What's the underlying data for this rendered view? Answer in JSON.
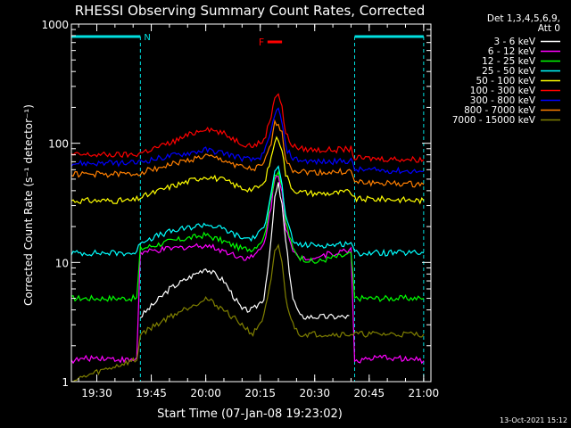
{
  "chart_data": {
    "type": "line",
    "title": "RHESSI Observing Summary Count Rates, Corrected",
    "xlabel": "Start Time (07-Jan-08 19:23:02)",
    "ylabel": "Corrected Count Rate (s⁻¹ detector⁻¹)",
    "y_scale": "log",
    "ylim": [
      1,
      1000
    ],
    "xlim": [
      "19:23",
      "21:02"
    ],
    "x_ticks": [
      "19:30",
      "19:45",
      "20:00",
      "20:15",
      "20:30",
      "20:45",
      "21:00"
    ],
    "y_ticks": [
      "1",
      "10",
      "100",
      "1000"
    ],
    "grid": false,
    "legend_position": "right",
    "legend_header": [
      "Det 1,3,4,5,6,9,",
      "Att 0"
    ],
    "flags": [
      {
        "label": "N",
        "start": "19:23",
        "end": "19:42",
        "color": "#00e0e0"
      },
      {
        "label": "N",
        "start": "20:41",
        "end": "21:00",
        "color": "#00e0e0"
      },
      {
        "label": "F",
        "start": "20:17",
        "end": "20:21",
        "color": "#ff0000"
      }
    ],
    "x": [
      "19:23",
      "19:30",
      "19:40",
      "19:41",
      "19:42",
      "19:50",
      "20:00",
      "20:05",
      "20:10",
      "20:13",
      "20:16",
      "20:18",
      "20:19",
      "20:20",
      "20:21",
      "20:22",
      "20:24",
      "20:26",
      "20:30",
      "20:35",
      "20:39",
      "20:40",
      "20:41",
      "20:50",
      "21:00"
    ],
    "series": [
      {
        "name": "3 - 6 keV",
        "color": "#ffffff",
        "values": [
          null,
          null,
          null,
          null,
          3.5,
          6,
          9,
          7,
          4,
          4,
          5,
          15,
          35,
          45,
          30,
          15,
          5,
          3.5,
          3.5,
          3.5,
          3.5,
          3.5,
          null,
          null,
          null
        ]
      },
      {
        "name": "6 - 12 keV",
        "color": "#ff00ff",
        "values": [
          1.5,
          1.6,
          1.5,
          1.6,
          12,
          13,
          14,
          12.5,
          11,
          11,
          14,
          30,
          50,
          55,
          40,
          20,
          12,
          11,
          11,
          12,
          12.5,
          13,
          1.5,
          1.6,
          1.5
        ]
      },
      {
        "name": "12 - 25 keV",
        "color": "#00ff00",
        "values": [
          5,
          5,
          5,
          5,
          13,
          15,
          17,
          15,
          13,
          13,
          16,
          35,
          55,
          58,
          42,
          22,
          13,
          11,
          10,
          11,
          11.5,
          12,
          5,
          5,
          5
        ]
      },
      {
        "name": "25 - 50 keV",
        "color": "#00ffff",
        "values": [
          12,
          12,
          12,
          12,
          15,
          18,
          21,
          19,
          16,
          16,
          19,
          40,
          60,
          62,
          45,
          24,
          15,
          14,
          14,
          14,
          14.5,
          15,
          12,
          12,
          12
        ]
      },
      {
        "name": "50 - 100 keV",
        "color": "#ffff00",
        "values": [
          33,
          33,
          33,
          34,
          35,
          43,
          53,
          49,
          42,
          41,
          45,
          75,
          105,
          110,
          90,
          55,
          41,
          39,
          38,
          38,
          39,
          39,
          34,
          34,
          33
        ]
      },
      {
        "name": "100 - 300 keV",
        "color": "#ff0000",
        "values": [
          80,
          80,
          80,
          81,
          83,
          100,
          135,
          120,
          100,
          95,
          105,
          170,
          250,
          260,
          200,
          120,
          95,
          90,
          88,
          88,
          89,
          90,
          75,
          74,
          73
        ]
      },
      {
        "name": "300 - 800 keV",
        "color": "#0000ff",
        "values": [
          68,
          68,
          68,
          69,
          70,
          78,
          88,
          83,
          75,
          72,
          80,
          125,
          180,
          190,
          150,
          92,
          75,
          72,
          70,
          70,
          71,
          72,
          60,
          59,
          58
        ]
      },
      {
        "name": "800 - 7000 keV",
        "color": "#ff7f00",
        "values": [
          55,
          55,
          55,
          56,
          57,
          66,
          78,
          72,
          63,
          60,
          66,
          100,
          145,
          150,
          120,
          75,
          60,
          58,
          57,
          57,
          58,
          58,
          47,
          46,
          45
        ]
      },
      {
        "name": "7000 - 15000 keV",
        "color": "#808000",
        "values": [
          1,
          1.2,
          1.5,
          1.5,
          2.5,
          3.5,
          5,
          4,
          3,
          2.5,
          3.5,
          7,
          12,
          14,
          10,
          5,
          3,
          2.5,
          2.5,
          2.5,
          2.5,
          2.5,
          2.5,
          2.5,
          2.5
        ]
      }
    ],
    "timestamp": "13-Oct-2021 15:12"
  }
}
